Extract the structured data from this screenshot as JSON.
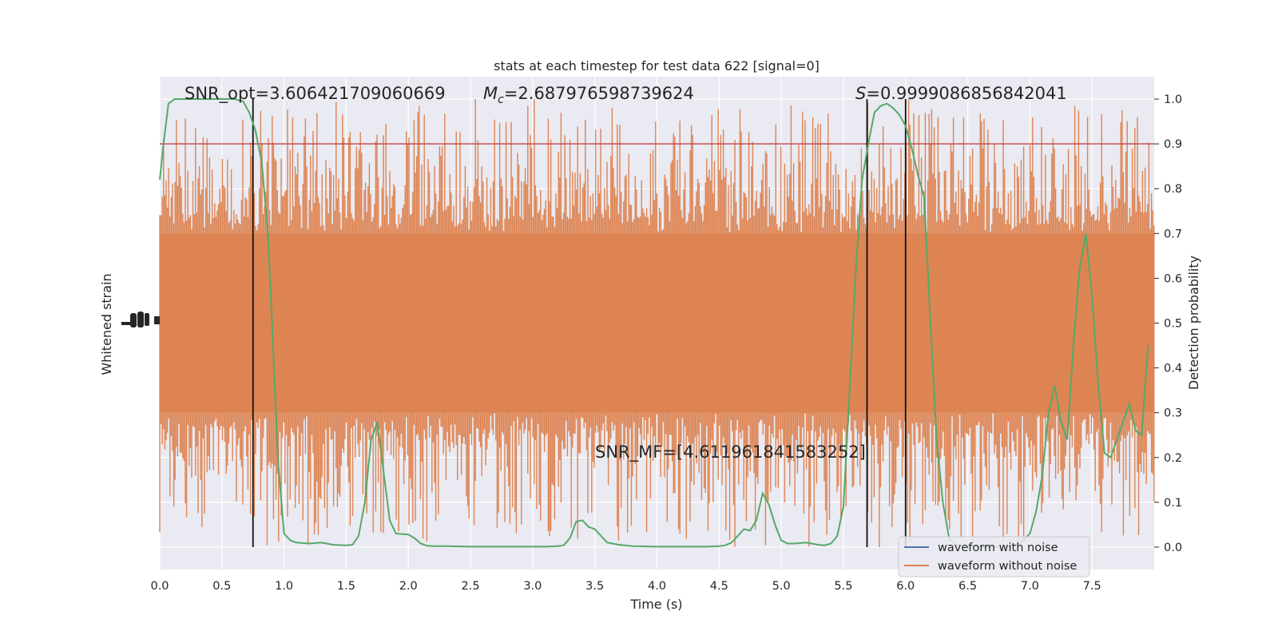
{
  "chart_data": {
    "type": "line",
    "title": "stats at each timestep for test data 622 [signal=0]",
    "xlabel": "Time (s)",
    "ylabel_left": "Whitened strain",
    "ylabel_right": "Detection probability",
    "xlim": [
      0,
      8
    ],
    "right_ylim": [
      -0.05,
      1.05
    ],
    "x_ticks": [
      "0.0",
      "0.5",
      "1.0",
      "1.5",
      "2.0",
      "2.5",
      "3.0",
      "3.5",
      "4.0",
      "4.5",
      "5.0",
      "5.5",
      "6.0",
      "6.5",
      "7.0",
      "7.5"
    ],
    "right_y_ticks": [
      "0.0",
      "0.1",
      "0.2",
      "0.3",
      "0.4",
      "0.5",
      "0.6",
      "0.7",
      "0.8",
      "0.9",
      "1.0"
    ],
    "threshold": 0.9,
    "vertical_lines": [
      0.75,
      5.69,
      6.0
    ],
    "annotations": {
      "snr_opt": "SNR_opt=3.606421709060669",
      "mc_symbol": "M",
      "mc_sub": "c",
      "mc_value": "=2.687976598739624",
      "s_symbol": "S",
      "s_value": "=0.9999086856842041",
      "snr_mf": "SNR_MF=[4.611961841583252]"
    },
    "series": [
      {
        "name": "waveform with noise",
        "color": "#4c72b0"
      },
      {
        "name": "waveform without noise",
        "color": "#dd8452",
        "noise_band": {
          "core": [
            0.3,
            0.7
          ],
          "spike_range": [
            0.0,
            1.0
          ]
        }
      },
      {
        "name": "",
        "color": "#55a868",
        "x": [
          0.0,
          0.03,
          0.07,
          0.12,
          0.2,
          0.3,
          0.4,
          0.5,
          0.6,
          0.67,
          0.72,
          0.77,
          0.82,
          0.87,
          0.9,
          0.95,
          1.0,
          1.05,
          1.1,
          1.2,
          1.3,
          1.4,
          1.5,
          1.55,
          1.6,
          1.65,
          1.7,
          1.75,
          1.8,
          1.85,
          1.9,
          2.0,
          2.05,
          2.1,
          2.15,
          2.2,
          2.3,
          2.5,
          2.7,
          2.9,
          3.1,
          3.2,
          3.25,
          3.3,
          3.35,
          3.4,
          3.45,
          3.5,
          3.55,
          3.6,
          3.7,
          3.8,
          4.0,
          4.2,
          4.4,
          4.5,
          4.55,
          4.6,
          4.65,
          4.7,
          4.75,
          4.8,
          4.85,
          4.9,
          4.95,
          5.0,
          5.05,
          5.1,
          5.2,
          5.3,
          5.35,
          5.4,
          5.45,
          5.5,
          5.55,
          5.6,
          5.65,
          5.7,
          5.75,
          5.8,
          5.85,
          5.9,
          5.95,
          6.0,
          6.05,
          6.1,
          6.15,
          6.2,
          6.25,
          6.3,
          6.35,
          6.4,
          6.5,
          6.6,
          6.7,
          6.8,
          6.9,
          7.0,
          7.05,
          7.1,
          7.15,
          7.2,
          7.25,
          7.3,
          7.35,
          7.4,
          7.45,
          7.5,
          7.55,
          7.6,
          7.65,
          7.7,
          7.75,
          7.8,
          7.85,
          7.9,
          7.95
        ],
        "values": [
          0.82,
          0.9,
          0.99,
          1.0,
          1.0,
          1.0,
          1.0,
          1.0,
          1.0,
          0.995,
          0.97,
          0.93,
          0.86,
          0.7,
          0.52,
          0.2,
          0.03,
          0.015,
          0.01,
          0.008,
          0.01,
          0.005,
          0.004,
          0.005,
          0.025,
          0.1,
          0.24,
          0.28,
          0.17,
          0.06,
          0.03,
          0.028,
          0.02,
          0.008,
          0.003,
          0.002,
          0.002,
          0.001,
          0.001,
          0.001,
          0.001,
          0.002,
          0.004,
          0.02,
          0.057,
          0.06,
          0.045,
          0.04,
          0.025,
          0.01,
          0.005,
          0.002,
          0.001,
          0.001,
          0.001,
          0.002,
          0.004,
          0.01,
          0.025,
          0.04,
          0.037,
          0.06,
          0.12,
          0.095,
          0.05,
          0.015,
          0.008,
          0.008,
          0.01,
          0.005,
          0.004,
          0.008,
          0.025,
          0.09,
          0.35,
          0.62,
          0.82,
          0.9,
          0.97,
          0.985,
          0.99,
          0.98,
          0.965,
          0.94,
          0.89,
          0.83,
          0.78,
          0.5,
          0.24,
          0.1,
          0.02,
          0.006,
          0.002,
          0.001,
          0.001,
          0.001,
          0.003,
          0.03,
          0.08,
          0.16,
          0.3,
          0.36,
          0.28,
          0.24,
          0.45,
          0.62,
          0.7,
          0.56,
          0.36,
          0.21,
          0.2,
          0.24,
          0.28,
          0.32,
          0.26,
          0.25,
          0.45
        ]
      }
    ]
  }
}
